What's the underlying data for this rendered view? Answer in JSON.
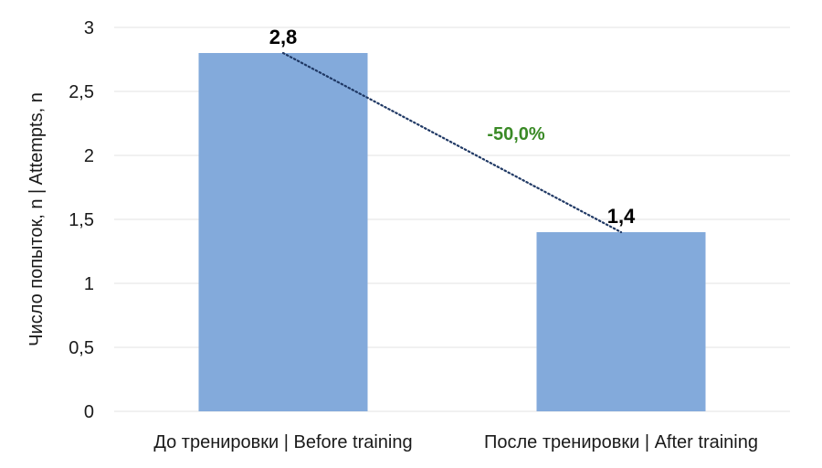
{
  "chart_data": {
    "type": "bar",
    "categories": [
      "До тренировки | Before training",
      "После тренировки | After training"
    ],
    "values": [
      2.8,
      1.4
    ],
    "data_labels": [
      "2,8",
      "1,4"
    ],
    "title": "",
    "xlabel": "",
    "ylabel": "Число попыток, n | Attempts, n",
    "ylim": [
      0,
      3
    ],
    "yticks": [
      0,
      0.5,
      1,
      1.5,
      2,
      2.5,
      3
    ],
    "ytick_labels": [
      "0",
      "0,5",
      "1",
      "1,5",
      "2",
      "2,5",
      "3"
    ],
    "grid": true,
    "legend": "none",
    "bar_color": "#83aadb",
    "change_annotation": {
      "text": "-50,0%",
      "color": "#3a8a26",
      "connector": "dotted line from top of first bar to top of second bar",
      "connector_color": "#1f3864"
    }
  }
}
